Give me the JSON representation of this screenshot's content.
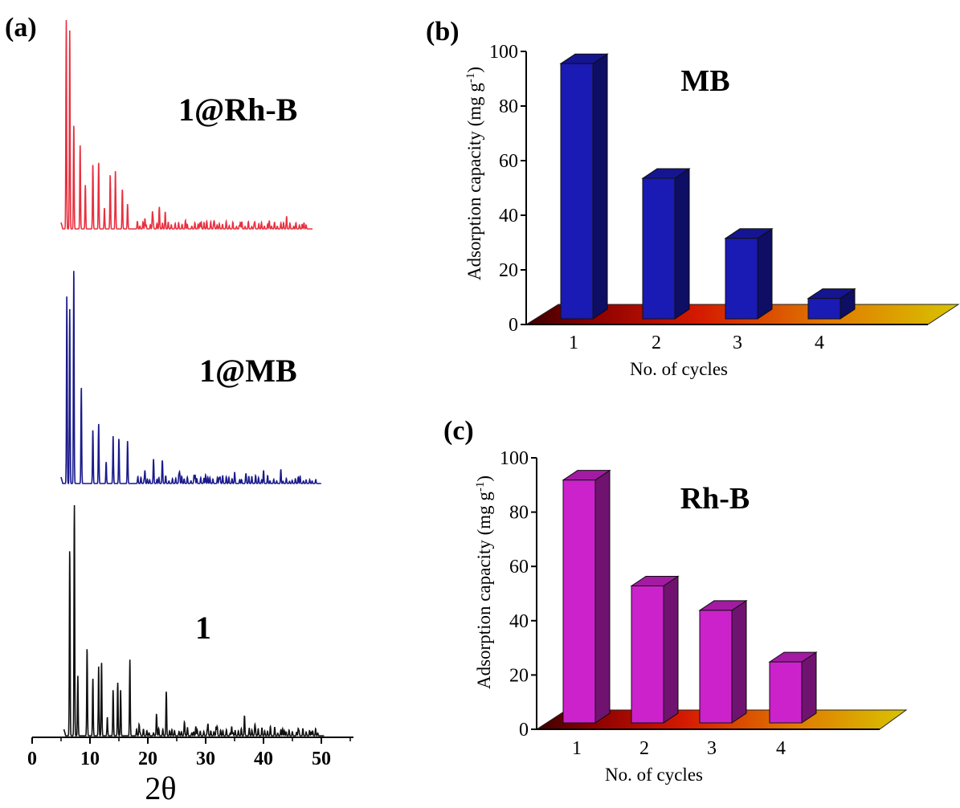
{
  "panel_a": {
    "label": "(a)",
    "xlabel": "2θ",
    "trace_labels": [
      "1@Rh-B",
      "1@MB",
      "1"
    ],
    "trace_colors": [
      "#e8303f",
      "#1a1a8c",
      "#111111"
    ]
  },
  "chart_data": [
    {
      "type": "line",
      "panel": "(a)",
      "xlabel": "2θ",
      "xlim": [
        0,
        55
      ],
      "x_ticks": [
        0,
        10,
        20,
        30,
        40,
        50
      ],
      "series": [
        {
          "name": "1@Rh-B",
          "color": "#e8303f",
          "peaks": [
            [
              5.9,
              100
            ],
            [
              6.5,
              95
            ],
            [
              7.2,
              50
            ],
            [
              8.3,
              40
            ],
            [
              9.2,
              21
            ],
            [
              10.5,
              31
            ],
            [
              11.5,
              32
            ],
            [
              12.5,
              10
            ],
            [
              13.5,
              26
            ],
            [
              14.4,
              28
            ],
            [
              15.6,
              19
            ],
            [
              16.5,
              12
            ],
            [
              19.5,
              5
            ],
            [
              20.8,
              8
            ],
            [
              22.0,
              9
            ],
            [
              23.0,
              5
            ],
            [
              26.5,
              3
            ],
            [
              29.0,
              3
            ],
            [
              31.5,
              3
            ],
            [
              36.0,
              3
            ],
            [
              38.5,
              3
            ],
            [
              41.0,
              4
            ],
            [
              44.0,
              3
            ],
            [
              47.0,
              3
            ]
          ]
        },
        {
          "name": "1@MB",
          "color": "#1a1a8c",
          "peaks": [
            [
              6.0,
              88
            ],
            [
              6.5,
              81
            ],
            [
              7.2,
              100
            ],
            [
              8.5,
              45
            ],
            [
              10.5,
              25
            ],
            [
              11.5,
              28
            ],
            [
              12.8,
              10
            ],
            [
              14.0,
              22
            ],
            [
              15.0,
              21
            ],
            [
              16.5,
              20
            ],
            [
              19.5,
              6
            ],
            [
              21.0,
              8
            ],
            [
              22.5,
              9
            ],
            [
              25.5,
              5
            ],
            [
              28.0,
              4
            ],
            [
              30.0,
              4
            ],
            [
              32.5,
              3
            ],
            [
              35.0,
              4
            ],
            [
              37.0,
              3
            ],
            [
              40.0,
              3
            ],
            [
              43.0,
              4
            ],
            [
              46.0,
              3
            ]
          ]
        },
        {
          "name": "1",
          "color": "#111111",
          "peaks": [
            [
              6.5,
              81
            ],
            [
              7.3,
              100
            ],
            [
              7.9,
              26
            ],
            [
              9.5,
              38
            ],
            [
              10.5,
              25
            ],
            [
              11.5,
              30
            ],
            [
              12.0,
              32
            ],
            [
              13.0,
              8
            ],
            [
              14.0,
              20
            ],
            [
              14.8,
              23
            ],
            [
              15.3,
              20
            ],
            [
              16.9,
              33
            ],
            [
              18.5,
              5
            ],
            [
              21.5,
              9
            ],
            [
              23.2,
              16
            ],
            [
              26.3,
              4
            ],
            [
              28.3,
              4
            ],
            [
              30.4,
              5
            ],
            [
              32.0,
              4
            ],
            [
              34.5,
              4
            ],
            [
              36.7,
              5
            ],
            [
              38.5,
              4
            ],
            [
              41.2,
              3
            ],
            [
              43.3,
              3
            ],
            [
              46.0,
              3
            ],
            [
              48.5,
              2
            ]
          ]
        }
      ]
    },
    {
      "type": "bar",
      "panel": "(b)",
      "title": "MB",
      "xlabel": "No. of cycles",
      "ylabel_main": "Adsorption capacity (mg g",
      "ylabel_sup": "-1",
      "ylabel_close": ")",
      "categories": [
        "1",
        "2",
        "3",
        "4"
      ],
      "values": [
        97,
        55,
        33,
        11
      ],
      "ylim": [
        0,
        100
      ],
      "y_ticks": [
        "0",
        "20",
        "40",
        "60",
        "80",
        "100"
      ],
      "bar_color": "#1a1ab5"
    },
    {
      "type": "bar",
      "panel": "(c)",
      "title": "Rh-B",
      "xlabel": "No. of cycles",
      "ylabel_main": "Adsorption capacity (mg g",
      "ylabel_sup": "-1",
      "ylabel_close": ")",
      "categories": [
        "1",
        "2",
        "3",
        "4"
      ],
      "values": [
        93,
        54,
        45,
        26
      ],
      "ylim": [
        0,
        100
      ],
      "y_ticks": [
        "0",
        "20",
        "40",
        "60",
        "80",
        "100"
      ],
      "bar_color": "#cc22cc"
    }
  ],
  "panel_labels": {
    "b": "(b)",
    "c": "(c)"
  }
}
